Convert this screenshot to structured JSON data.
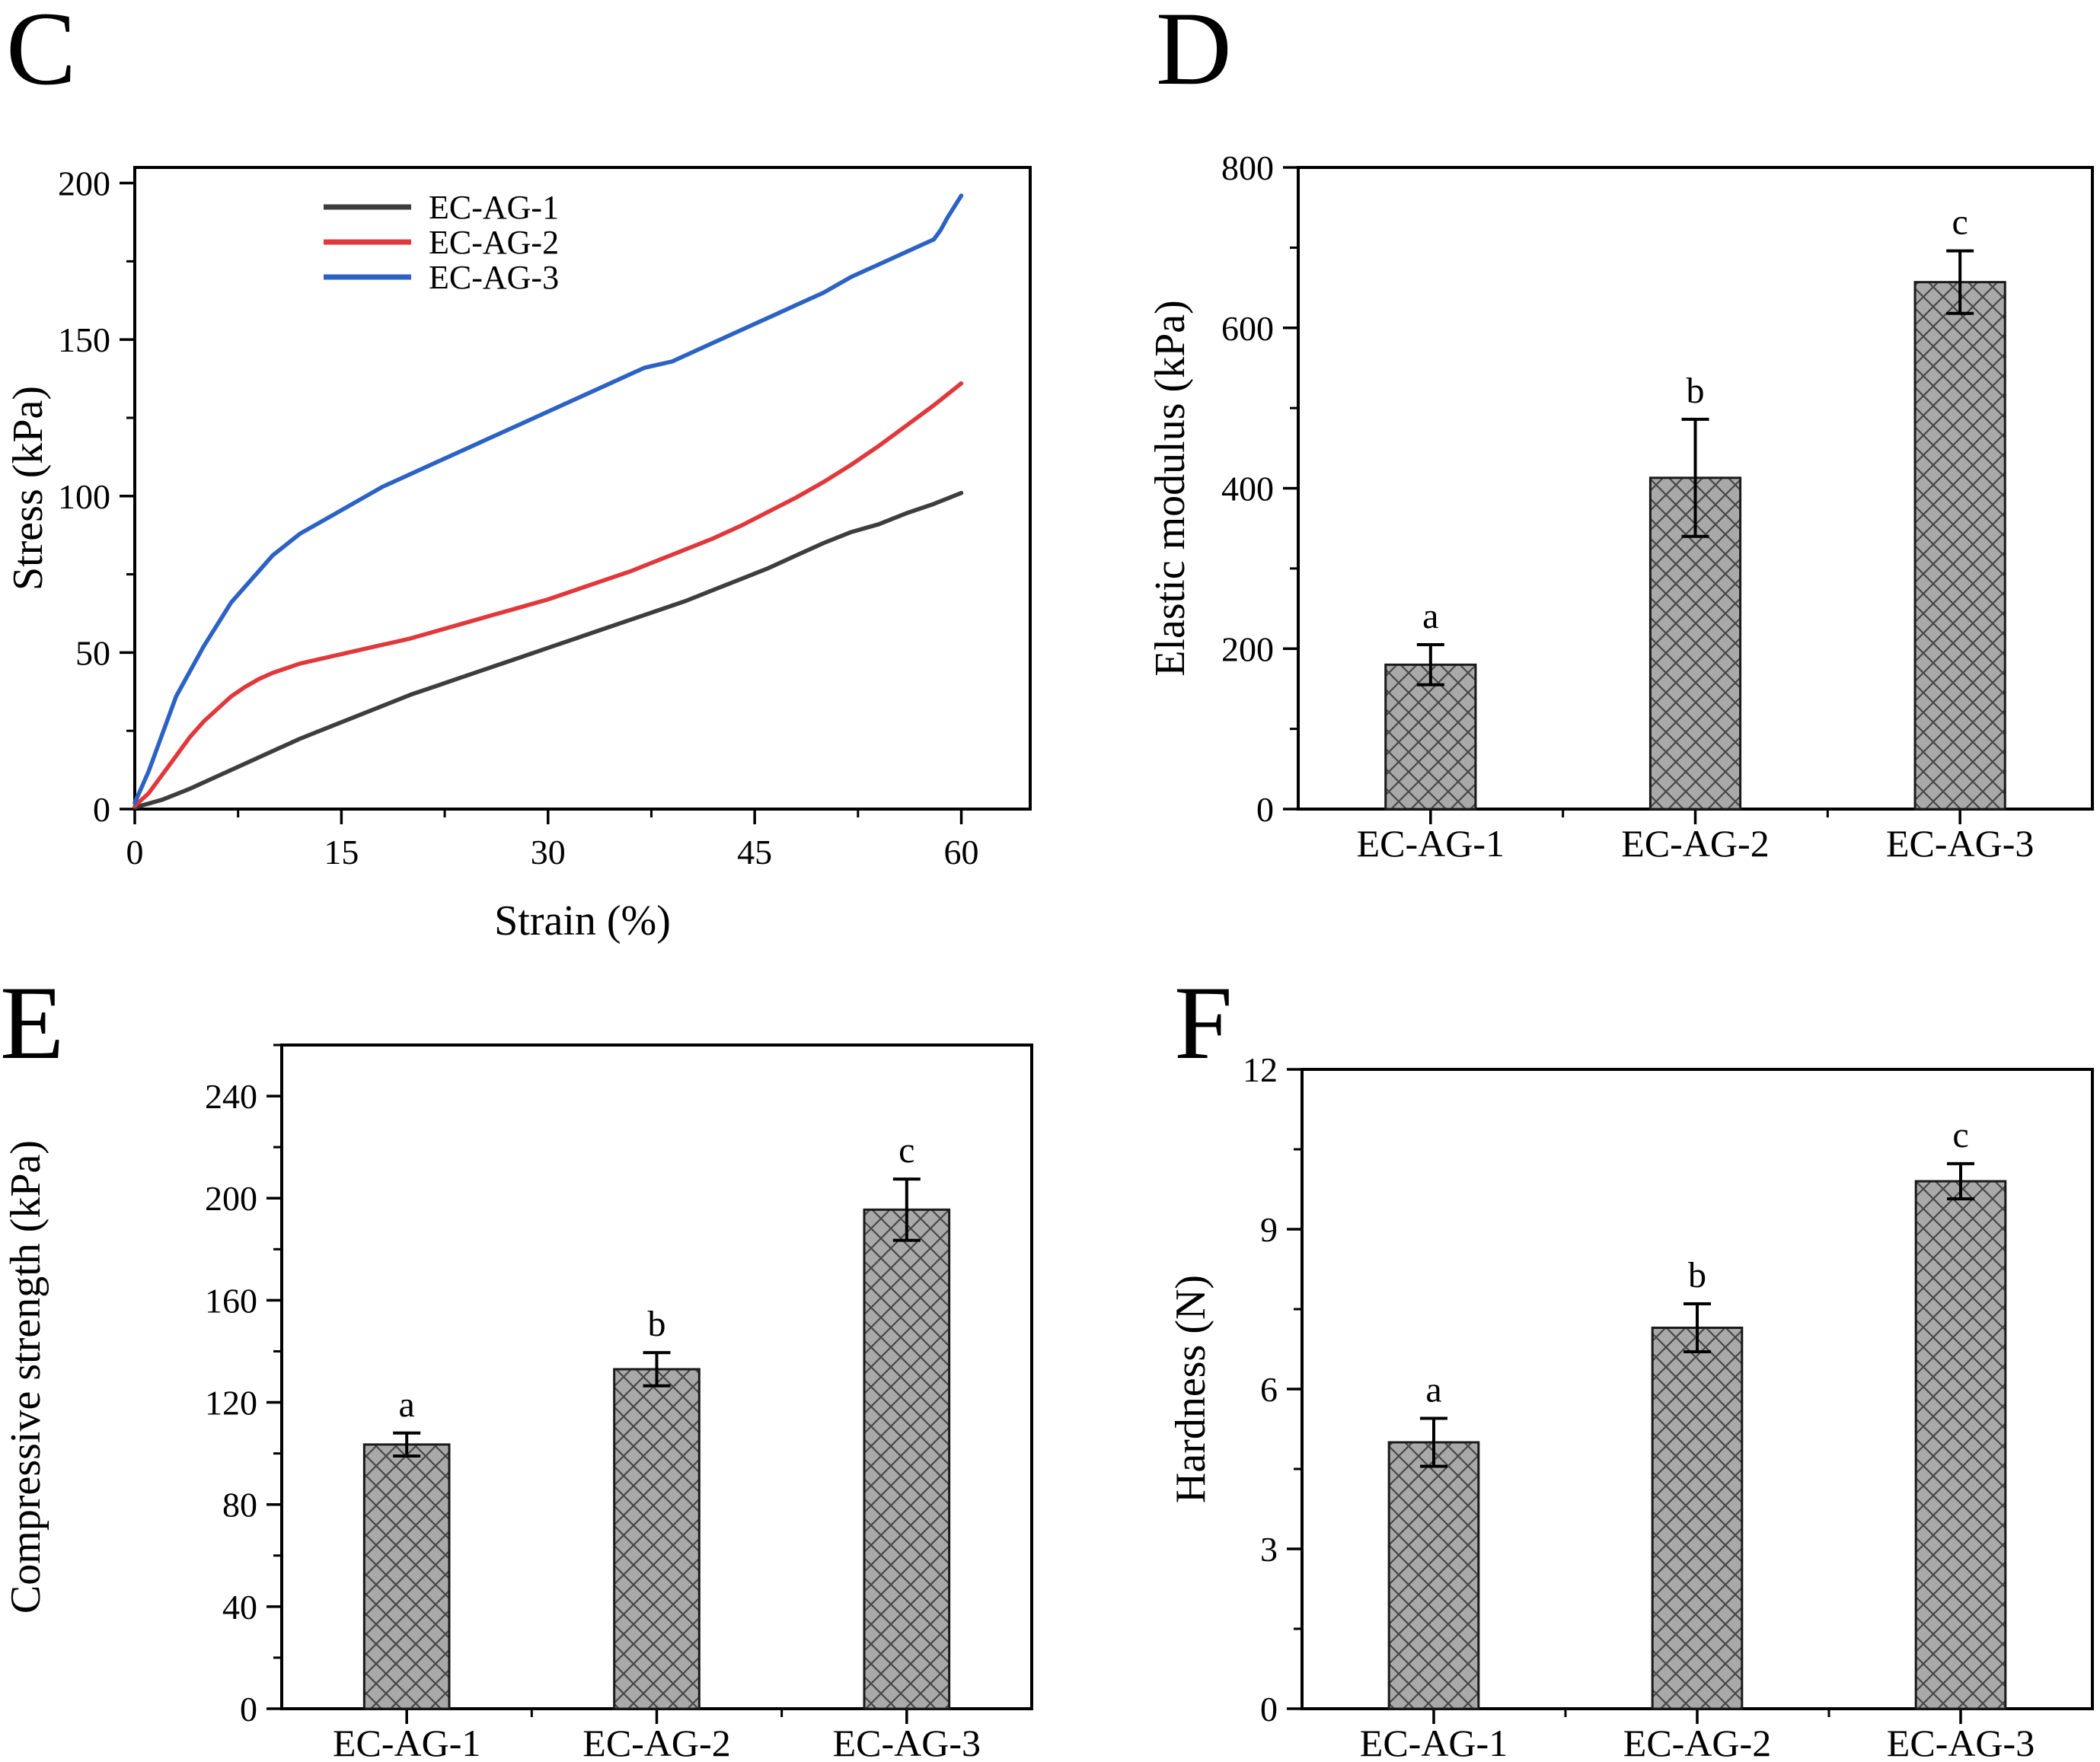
{
  "chart_data": [
    {
      "panel_label": "C",
      "type": "line",
      "xlabel": "Strain (%)",
      "ylabel": "Stress (kPa)",
      "xlim": [
        0,
        65
      ],
      "ylim": [
        0,
        205
      ],
      "x_ticks": [
        0,
        15,
        30,
        45,
        60
      ],
      "y_ticks": [
        0,
        50,
        100,
        150,
        200
      ],
      "x_minor_step": 7.5,
      "y_minor_step": 25,
      "grid": false,
      "legend_position": "top-left",
      "axis_color": "#000000",
      "series": [
        {
          "name": "EC-AG-1",
          "color": "#3d3d3d",
          "points": [
            [
              0,
              0.5
            ],
            [
              2,
              3
            ],
            [
              4,
              6.5
            ],
            [
              6,
              10.5
            ],
            [
              8,
              14.5
            ],
            [
              10,
              18.5
            ],
            [
              12,
              22.5
            ],
            [
              14,
              26
            ],
            [
              16,
              29.5
            ],
            [
              18,
              33
            ],
            [
              20,
              36.5
            ],
            [
              22,
              39.5
            ],
            [
              24,
              42.5
            ],
            [
              26,
              45.5
            ],
            [
              28,
              48.5
            ],
            [
              30,
              51.5
            ],
            [
              32,
              54.5
            ],
            [
              34,
              57.5
            ],
            [
              36,
              60.5
            ],
            [
              38,
              63.5
            ],
            [
              40,
              66.5
            ],
            [
              42,
              70
            ],
            [
              44,
              73.5
            ],
            [
              46,
              77
            ],
            [
              48,
              81
            ],
            [
              50,
              85
            ],
            [
              52,
              88.5
            ],
            [
              54,
              91
            ],
            [
              56,
              94.5
            ],
            [
              58,
              97.5
            ],
            [
              60,
              101
            ]
          ]
        },
        {
          "name": "EC-AG-2",
          "color": "#e0383b",
          "points": [
            [
              0,
              1
            ],
            [
              1,
              5
            ],
            [
              2,
              11
            ],
            [
              3,
              17
            ],
            [
              4,
              23
            ],
            [
              5,
              28
            ],
            [
              6,
              32
            ],
            [
              7,
              36
            ],
            [
              8,
              39
            ],
            [
              9,
              41.5
            ],
            [
              10,
              43.5
            ],
            [
              12,
              46.5
            ],
            [
              14,
              48.5
            ],
            [
              16,
              50.5
            ],
            [
              18,
              52.5
            ],
            [
              20,
              54.5
            ],
            [
              22,
              57
            ],
            [
              24,
              59.5
            ],
            [
              26,
              62
            ],
            [
              28,
              64.5
            ],
            [
              30,
              67
            ],
            [
              32,
              70
            ],
            [
              34,
              73
            ],
            [
              36,
              76
            ],
            [
              38,
              79.5
            ],
            [
              40,
              83
            ],
            [
              42,
              86.5
            ],
            [
              44,
              90.5
            ],
            [
              46,
              95
            ],
            [
              48,
              99.5
            ],
            [
              50,
              104.5
            ],
            [
              52,
              110
            ],
            [
              54,
              116
            ],
            [
              56,
              122.5
            ],
            [
              58,
              129
            ],
            [
              60,
              136
            ]
          ]
        },
        {
          "name": "EC-AG-3",
          "color": "#2b62c4",
          "points": [
            [
              0,
              2
            ],
            [
              1,
              12
            ],
            [
              2,
              24
            ],
            [
              3,
              36
            ],
            [
              4,
              44
            ],
            [
              5,
              52
            ],
            [
              6,
              59
            ],
            [
              7,
              66
            ],
            [
              8,
              71
            ],
            [
              9,
              76
            ],
            [
              10,
              81
            ],
            [
              12,
              88
            ],
            [
              14,
              93
            ],
            [
              16,
              98
            ],
            [
              18,
              103
            ],
            [
              20,
              107
            ],
            [
              22,
              111
            ],
            [
              24,
              115
            ],
            [
              26,
              119
            ],
            [
              28,
              123
            ],
            [
              30,
              127
            ],
            [
              32,
              131
            ],
            [
              34,
              135
            ],
            [
              36,
              139
            ],
            [
              37,
              141
            ],
            [
              38,
              142
            ],
            [
              39,
              143
            ],
            [
              40,
              145
            ],
            [
              42,
              149
            ],
            [
              44,
              153
            ],
            [
              46,
              157
            ],
            [
              48,
              161
            ],
            [
              50,
              165
            ],
            [
              52,
              170
            ],
            [
              54,
              174
            ],
            [
              56,
              178
            ],
            [
              57,
              180
            ],
            [
              58,
              182
            ],
            [
              58.5,
              185
            ],
            [
              59,
              189
            ],
            [
              60,
              196
            ]
          ]
        }
      ]
    },
    {
      "panel_label": "D",
      "type": "bar",
      "ylabel": "Elastic modulus (kPa)",
      "categories": [
        "EC-AG-1",
        "EC-AG-2",
        "EC-AG-3"
      ],
      "values": [
        180,
        413,
        657
      ],
      "errors": [
        25,
        73,
        39
      ],
      "sig_letters": [
        "a",
        "b",
        "c"
      ],
      "ylim": [
        0,
        800
      ],
      "y_ticks": [
        0,
        200,
        400,
        600,
        800
      ],
      "y_minor_step": 100,
      "bar_fill": "#a9a9a9",
      "hatch_color": "#474747",
      "bar_outline": "#1a1a1a"
    },
    {
      "panel_label": "E",
      "type": "bar",
      "ylabel": "Compressive strength (kPa)",
      "categories": [
        "EC-AG-1",
        "EC-AG-2",
        "EC-AG-3"
      ],
      "values": [
        103.5,
        133,
        195.5
      ],
      "errors": [
        4.5,
        6.5,
        12
      ],
      "sig_letters": [
        "a",
        "b",
        "c"
      ],
      "ylim": [
        0,
        260
      ],
      "y_ticks": [
        0,
        40,
        80,
        120,
        160,
        200,
        240
      ],
      "y_minor_step": 20,
      "bar_fill": "#a9a9a9",
      "hatch_color": "#474747",
      "bar_outline": "#1a1a1a"
    },
    {
      "panel_label": "F",
      "type": "bar",
      "ylabel": "Hardness (N)",
      "categories": [
        "EC-AG-1",
        "EC-AG-2",
        "EC-AG-3"
      ],
      "values": [
        5.0,
        7.15,
        9.9
      ],
      "errors": [
        0.45,
        0.45,
        0.33
      ],
      "sig_letters": [
        "a",
        "b",
        "c"
      ],
      "ylim": [
        0,
        12
      ],
      "y_ticks": [
        0,
        3,
        6,
        9,
        12
      ],
      "y_minor_step": 1.5,
      "bar_fill": "#a9a9a9",
      "hatch_color": "#474747",
      "bar_outline": "#1a1a1a"
    }
  ]
}
